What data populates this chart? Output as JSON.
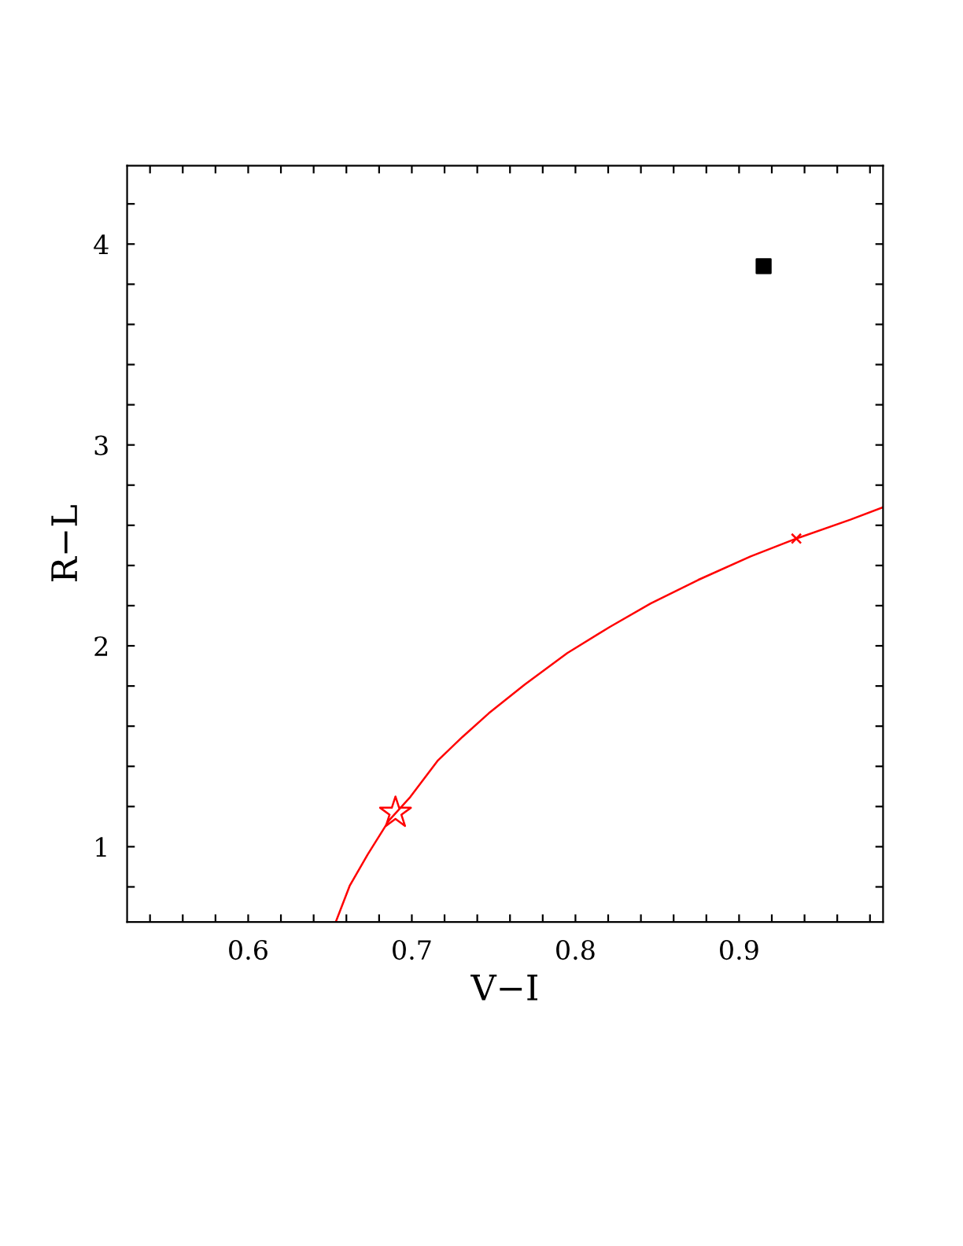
{
  "chart_data": {
    "type": "line",
    "xlabel": "V−I",
    "ylabel": "R−L",
    "xlim": [
      0.526,
      0.988
    ],
    "ylim": [
      0.625,
      4.39
    ],
    "xticks": [
      {
        "value": 0.54,
        "label": null
      },
      {
        "value": 0.56,
        "label": null
      },
      {
        "value": 0.58,
        "label": null
      },
      0.6,
      {
        "value": 0.62,
        "label": null
      },
      {
        "value": 0.64,
        "label": null
      },
      {
        "value": 0.66,
        "label": null
      },
      {
        "value": 0.68,
        "label": null
      },
      0.7,
      {
        "value": 0.72,
        "label": null
      },
      {
        "value": 0.74,
        "label": null
      },
      {
        "value": 0.76,
        "label": null
      },
      {
        "value": 0.78,
        "label": null
      },
      0.8,
      {
        "value": 0.82,
        "label": null
      },
      {
        "value": 0.84,
        "label": null
      },
      {
        "value": 0.86,
        "label": null
      },
      {
        "value": 0.88,
        "label": null
      },
      0.9,
      {
        "value": 0.92,
        "label": null
      },
      {
        "value": 0.94,
        "label": null
      },
      {
        "value": 0.96,
        "label": null
      },
      {
        "value": 0.98,
        "label": null
      }
    ],
    "yticks": [
      {
        "value": 0.8,
        "label": null
      },
      1,
      {
        "value": 1.2,
        "label": null
      },
      {
        "value": 1.4,
        "label": null
      },
      {
        "value": 1.6,
        "label": null
      },
      {
        "value": 1.8,
        "label": null
      },
      2,
      {
        "value": 2.2,
        "label": null
      },
      {
        "value": 2.4,
        "label": null
      },
      {
        "value": 2.6,
        "label": null
      },
      {
        "value": 2.8,
        "label": null
      },
      3,
      {
        "value": 3.2,
        "label": null
      },
      {
        "value": 3.4,
        "label": null
      },
      {
        "value": 3.6,
        "label": null
      },
      {
        "value": 3.8,
        "label": null
      },
      4,
      {
        "value": 4.2,
        "label": null
      }
    ],
    "grid": false,
    "legend": false,
    "series": [
      {
        "color": "#ff0000",
        "marker": "none",
        "line_style": "solid",
        "x": [
          0.6535,
          0.662,
          0.673,
          0.686,
          0.699,
          0.716,
          0.731,
          0.747,
          0.769,
          0.795,
          0.821,
          0.846,
          0.875,
          0.907,
          0.935,
          0.968,
          0.988
        ],
        "values": [
          0.625,
          0.805,
          0.961,
          1.13,
          1.247,
          1.43,
          1.547,
          1.664,
          1.807,
          1.964,
          2.094,
          2.211,
          2.328,
          2.445,
          2.534,
          2.628,
          2.69
        ]
      },
      {
        "type": "scatter",
        "color": "#ff0000",
        "marker": "star",
        "x": [
          0.69
        ],
        "values": [
          1.169
        ]
      },
      {
        "type": "scatter",
        "color": "#ff0000",
        "marker": "cross",
        "x": [
          0.935
        ],
        "values": [
          2.534
        ]
      },
      {
        "type": "scatter",
        "color": "#000000",
        "marker": "square",
        "x": [
          0.915
        ],
        "values": [
          3.89
        ]
      }
    ]
  }
}
